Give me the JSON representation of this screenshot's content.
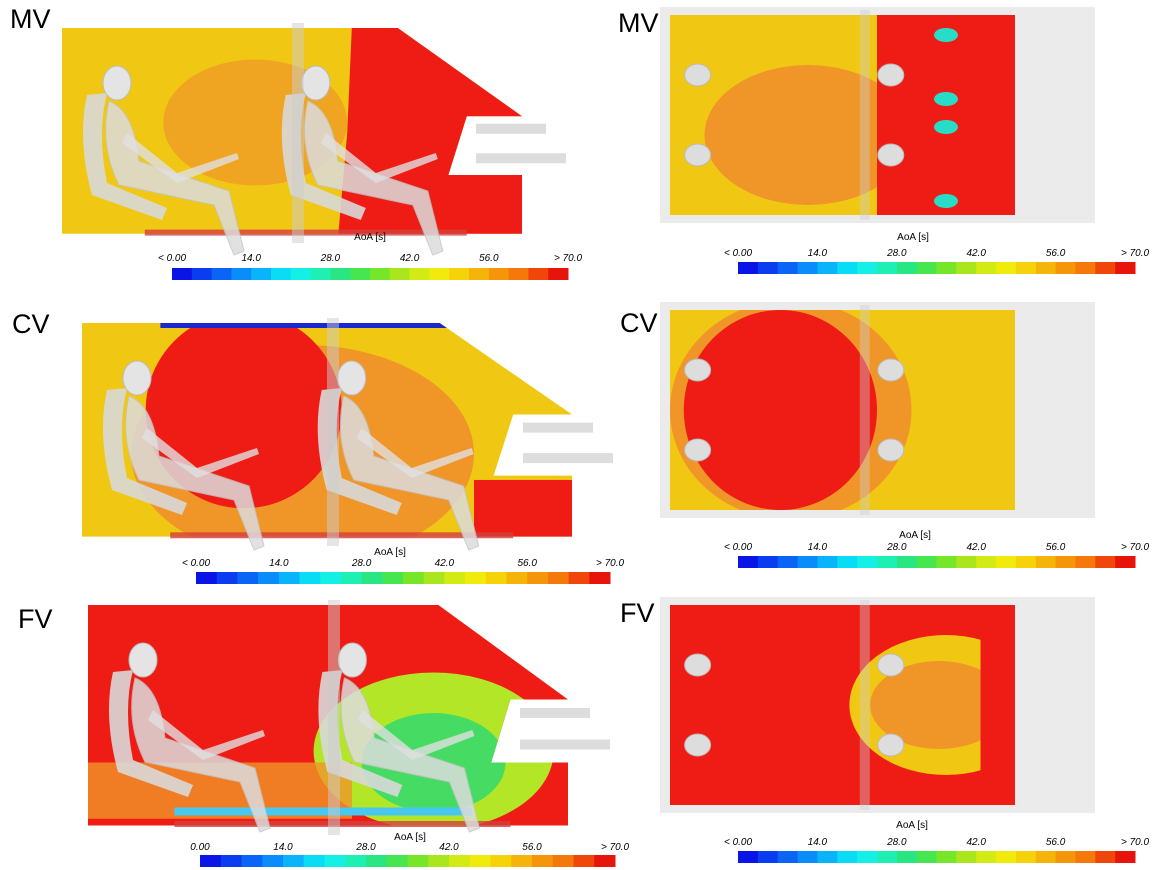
{
  "panels": [
    {
      "label": "MV",
      "colorbar": {
        "title": "AoA [s]",
        "ticks": [
          "< 0.00",
          "14.0",
          "28.0",
          "42.0",
          "56.0",
          "> 70.0"
        ]
      }
    },
    {
      "label": "MV",
      "colorbar": {
        "title": "AoA [s]",
        "ticks": [
          "< 0.00",
          "14.0",
          "28.0",
          "42.0",
          "56.0",
          "> 70.0"
        ]
      }
    },
    {
      "label": "CV",
      "colorbar": {
        "title": "AoA [s]",
        "ticks": [
          "< 0.00",
          "14.0",
          "28.0",
          "42.0",
          "56.0",
          "> 70.0"
        ]
      }
    },
    {
      "label": "CV",
      "colorbar": {
        "title": "AoA [s]",
        "ticks": [
          "< 0.00",
          "14.0",
          "28.0",
          "42.0",
          "56.0",
          "> 70.0"
        ]
      }
    },
    {
      "label": "FV",
      "colorbar": {
        "title": "AoA [s]",
        "ticks": [
          "0.00",
          "14.0",
          "28.0",
          "42.0",
          "56.0",
          "> 70.0"
        ]
      }
    },
    {
      "label": "FV",
      "colorbar": {
        "title": "AoA [s]",
        "ticks": [
          "< 0.00",
          "14.0",
          "28.0",
          "42.0",
          "56.0",
          "> 70.0"
        ]
      }
    }
  ]
}
